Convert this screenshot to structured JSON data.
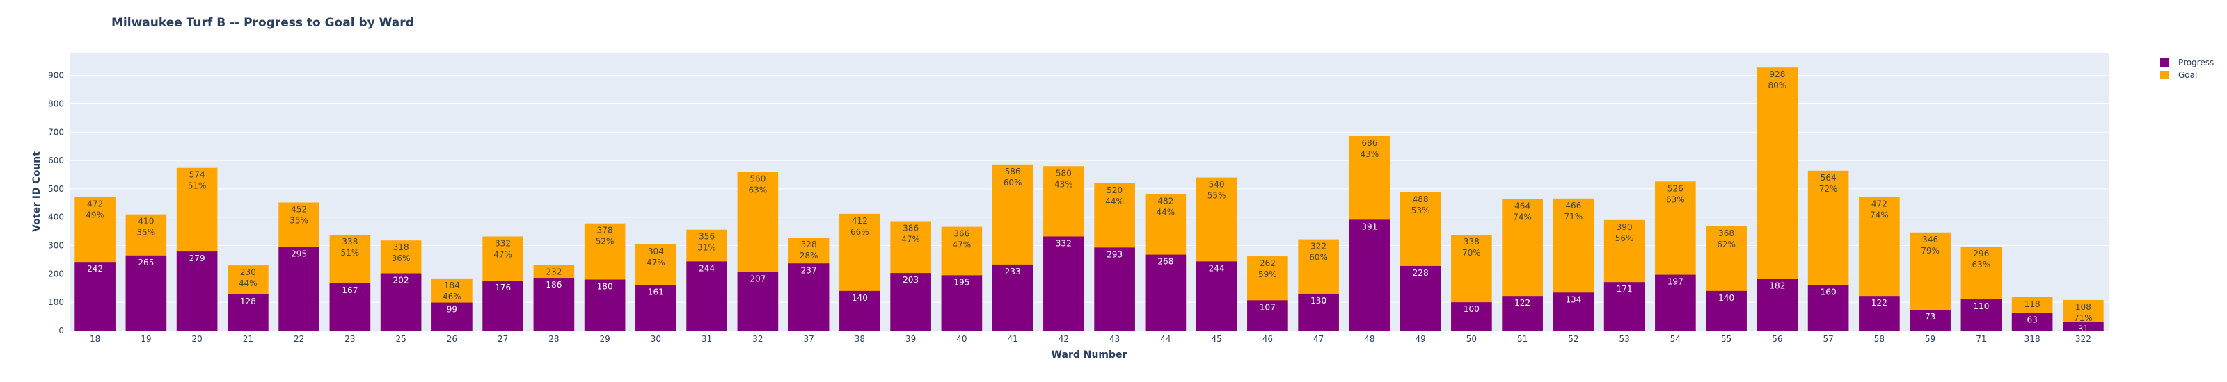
{
  "chart_data": {
    "type": "bar",
    "barmode": "overlay",
    "title": "Milwaukee Turf B -- Progress to Goal by Ward",
    "xlabel": "Ward Number",
    "ylabel": "Voter ID Count",
    "ylim": [
      0,
      980
    ],
    "yticks": [
      0,
      100,
      200,
      300,
      400,
      500,
      600,
      700,
      800,
      900
    ],
    "grid": true,
    "legend_position": "top-right",
    "categories": [
      "18",
      "19",
      "20",
      "21",
      "22",
      "23",
      "25",
      "26",
      "27",
      "28",
      "29",
      "30",
      "31",
      "32",
      "37",
      "38",
      "39",
      "40",
      "41",
      "42",
      "43",
      "44",
      "45",
      "46",
      "47",
      "48",
      "49",
      "50",
      "51",
      "52",
      "53",
      "54",
      "55",
      "56",
      "57",
      "58",
      "59",
      "71",
      "318",
      "322"
    ],
    "series": [
      {
        "name": "Progress",
        "color": "#800080",
        "values": [
          242,
          265,
          279,
          128,
          295,
          167,
          202,
          99,
          176,
          186,
          180,
          161,
          244,
          207,
          237,
          140,
          203,
          195,
          233,
          332,
          293,
          268,
          244,
          107,
          130,
          391,
          228,
          100,
          122,
          134,
          171,
          197,
          140,
          182,
          160,
          122,
          73,
          110,
          63,
          31
        ]
      },
      {
        "name": "Goal",
        "color": "#FFA500",
        "values": [
          472,
          410,
          574,
          230,
          452,
          338,
          318,
          184,
          332,
          232,
          378,
          304,
          356,
          560,
          328,
          412,
          386,
          366,
          586,
          580,
          520,
          482,
          540,
          262,
          322,
          686,
          488,
          338,
          464,
          466,
          390,
          526,
          368,
          928,
          564,
          472,
          346,
          296,
          118,
          108
        ]
      }
    ],
    "goal_labels": [
      "472<br>49%",
      "410<br>35%",
      "574<br>51%",
      "230<br>44%",
      "452<br>35%",
      "338<br>51%",
      "318<br>36%",
      "184<br>46%",
      "332<br>47%",
      "232",
      "378<br>52%",
      "304<br>47%",
      "356<br>31%",
      "560<br>63%",
      "328<br>28%",
      "412<br>66%",
      "386<br>47%",
      "366<br>47%",
      "586<br>60%",
      "580<br>43%",
      "520<br>44%",
      "482<br>44%",
      "540<br>55%",
      "262<br>59%",
      "322<br>60%",
      "686<br>43%",
      "488<br>53%",
      "338<br>70%",
      "464<br>74%",
      "466<br>71%",
      "390<br>56%",
      "526<br>63%",
      "368<br>62%",
      "928<br>80%",
      "564<br>72%",
      "472<br>74%",
      "346<br>79%",
      "296<br>63%",
      "118",
      "108<br>71%"
    ],
    "progress_labels": [
      "242",
      "265",
      "279",
      "128",
      "295",
      "167",
      "202",
      "99",
      "176",
      "186",
      "180",
      "161",
      "244",
      "207",
      "237",
      "140",
      "203",
      "195",
      "233",
      "332",
      "293",
      "268",
      "244",
      "107",
      "130",
      "391",
      "228",
      "100",
      "122",
      "134",
      "171",
      "197",
      "140",
      "182",
      "160",
      "122",
      "73",
      "110",
      "63",
      "31"
    ]
  }
}
